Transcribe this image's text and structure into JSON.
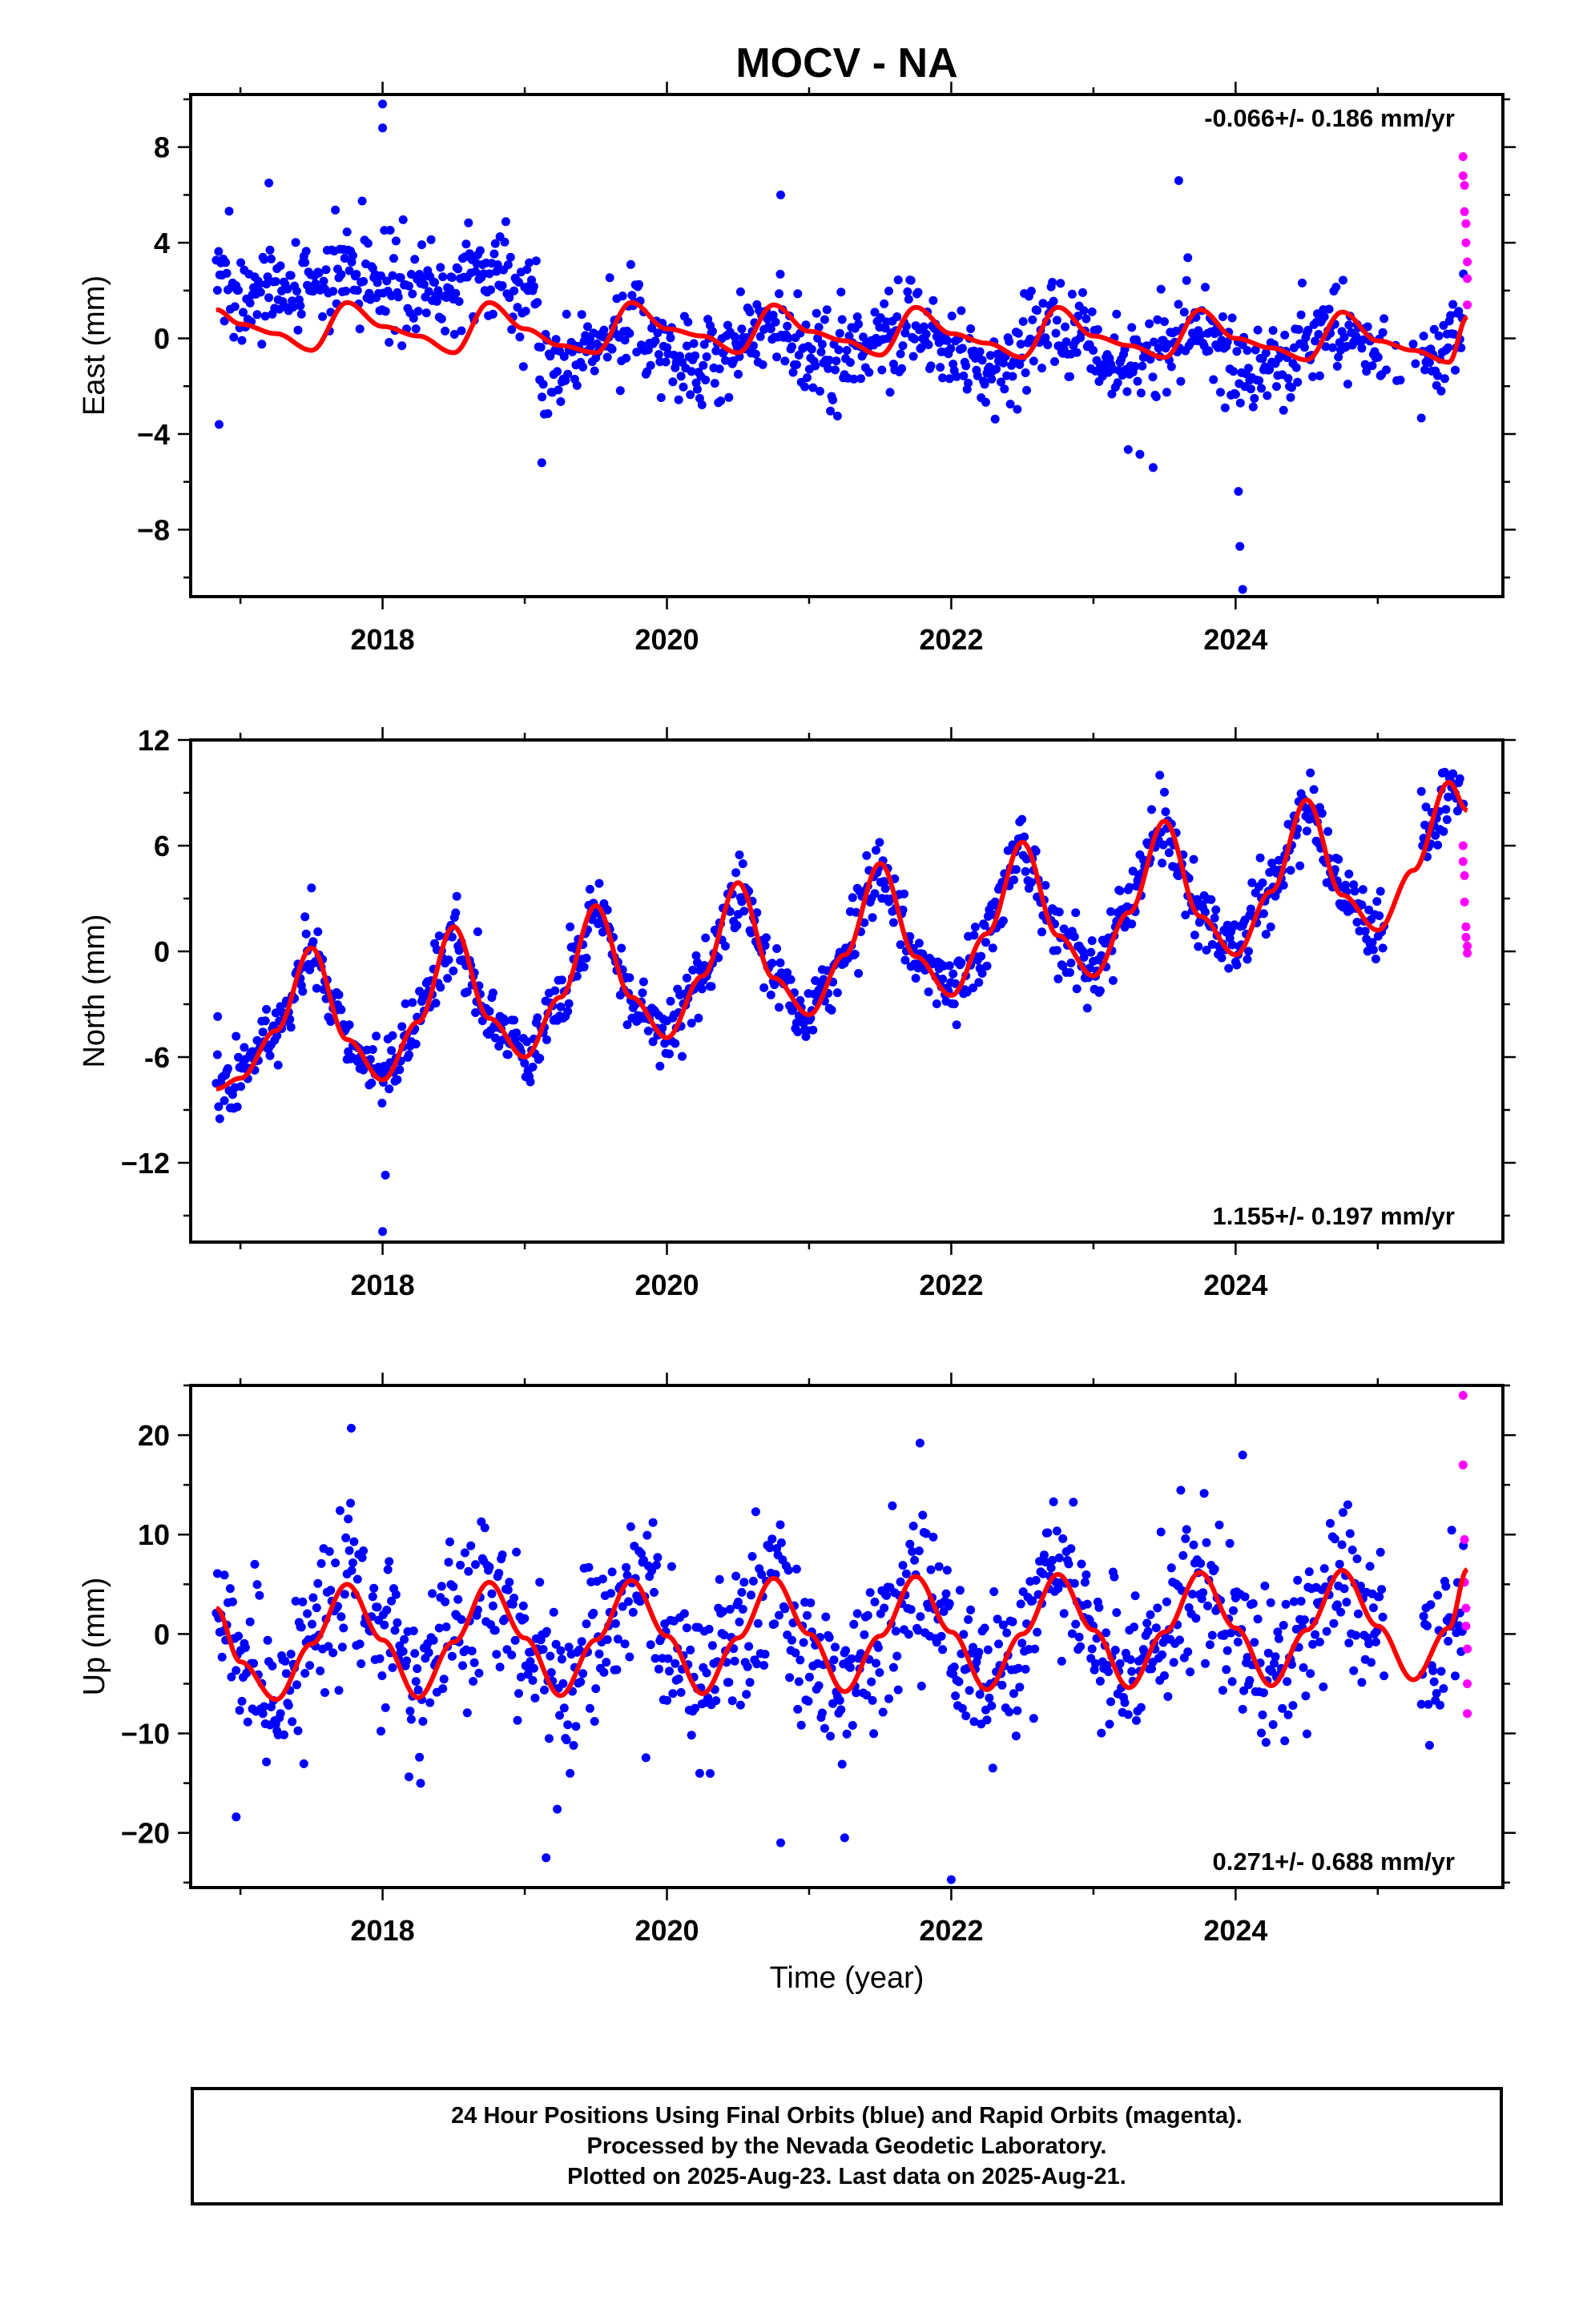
{
  "title": "MOCV - NA",
  "xlabel": "Time (year)",
  "colors": {
    "final": "#0000ff",
    "rapid": "#ff00ff",
    "model": "#ff0000",
    "axis": "#000000"
  },
  "caption": [
    "24 Hour Positions Using Final Orbits (blue) and Rapid Orbits (magenta).",
    "Processed by the Nevada Geodetic Laboratory.",
    "Plotted on 2025-Aug-23. Last data on 2025-Aug-21."
  ],
  "chart_data": [
    {
      "type": "scatter",
      "component": "east",
      "ylabel": "East (mm)",
      "rate_label": "-0.066+/- 0.186 mm/yr",
      "rate_label_position": "top-right",
      "xlim": [
        2016.65,
        2025.88
      ],
      "ylim": [
        -10.8,
        10.2
      ],
      "xticks": [
        2018,
        2020,
        2022,
        2024
      ],
      "xtick_labels": [
        "2018",
        "2020",
        "2022",
        "2024"
      ],
      "yticks": [
        8,
        4,
        0,
        -4,
        -8
      ],
      "ytick_labels": [
        "8",
        "4",
        "0",
        "−4",
        "−8"
      ],
      "data_span": [
        2016.83,
        2025.63
      ],
      "series": [
        {
          "name": "Final Orbits",
          "kind": "points",
          "color": "#0000ff",
          "segments": [
            {
              "start": 2016.83,
              "end": 2019.1,
              "offset": 2.4,
              "amplitude": 0.9,
              "phase": 0.6,
              "noise": 1.1
            },
            {
              "start": 2019.1,
              "end": 2025.55,
              "offset": -0.6,
              "amplitude": 1.3,
              "phase": 0.65,
              "noise": 1.0
            },
            {
              "start": 2025.55,
              "end": 2025.61,
              "offset": 1.0,
              "amplitude": 0.8,
              "phase": 0.65,
              "noise": 1.2
            }
          ],
          "outliers": [
            {
              "x": 2016.85,
              "y": -3.6
            },
            {
              "x": 2018.0,
              "y": 9.8
            },
            {
              "x": 2018.0,
              "y": 8.8
            },
            {
              "x": 2017.2,
              "y": 6.5
            },
            {
              "x": 2020.8,
              "y": 6.0
            },
            {
              "x": 2023.6,
              "y": 6.6
            },
            {
              "x": 2024.05,
              "y": -10.5
            },
            {
              "x": 2024.03,
              "y": -8.7
            },
            {
              "x": 2024.02,
              "y": -6.4
            },
            {
              "x": 2019.12,
              "y": -5.2
            },
            {
              "x": 2023.42,
              "y": -5.4
            }
          ]
        },
        {
          "name": "Rapid Orbits",
          "kind": "points",
          "color": "#ff00ff",
          "points": [
            [
              2025.6,
              7.6
            ],
            [
              2025.6,
              6.8
            ],
            [
              2025.61,
              6.4
            ],
            [
              2025.61,
              5.3
            ],
            [
              2025.62,
              4.8
            ],
            [
              2025.62,
              4.0
            ],
            [
              2025.63,
              3.2
            ],
            [
              2025.63,
              2.5
            ],
            [
              2025.63,
              1.4
            ]
          ]
        },
        {
          "name": "Model",
          "kind": "line",
          "color": "#ff0000",
          "x": [
            2016.83,
            2017.0,
            2017.25,
            2017.5,
            2017.75,
            2018.0,
            2018.25,
            2018.5,
            2018.75,
            2019.0,
            2019.25,
            2019.5,
            2019.75,
            2020.0,
            2020.25,
            2020.5,
            2020.75,
            2021.0,
            2021.25,
            2021.5,
            2021.75,
            2022.0,
            2022.25,
            2022.5,
            2022.75,
            2023.0,
            2023.25,
            2023.5,
            2023.75,
            2024.0,
            2024.25,
            2024.5,
            2024.75,
            2025.0,
            2025.25,
            2025.5,
            2025.63
          ],
          "y": [
            1.2,
            0.6,
            0.2,
            -0.5,
            1.5,
            0.5,
            0.1,
            -0.6,
            1.5,
            0.4,
            -0.3,
            -0.6,
            1.5,
            0.4,
            0.1,
            -0.6,
            1.4,
            0.3,
            -0.1,
            -0.7,
            1.3,
            0.2,
            -0.2,
            -0.8,
            1.3,
            0.1,
            -0.3,
            -0.8,
            1.2,
            0.0,
            -0.4,
            -0.9,
            1.1,
            -0.1,
            -0.5,
            -1.0,
            0.9
          ]
        }
      ]
    },
    {
      "type": "scatter",
      "component": "north",
      "ylabel": "North (mm)",
      "rate_label": "1.155+/- 0.197 mm/yr",
      "rate_label_position": "bottom-right",
      "xlim": [
        2016.65,
        2025.88
      ],
      "ylim": [
        -16.5,
        12.0
      ],
      "xticks": [
        2018,
        2020,
        2022,
        2024
      ],
      "xtick_labels": [
        "2018",
        "2020",
        "2022",
        "2024"
      ],
      "yticks": [
        12,
        6,
        0,
        -6,
        -12
      ],
      "ytick_labels": [
        "12",
        "6",
        "0",
        "-6",
        "−12"
      ],
      "data_span": [
        2016.83,
        2025.63
      ],
      "series": [
        {
          "name": "Final Orbits",
          "kind": "points",
          "color": "#0000ff",
          "trend": 1.155,
          "annual_amplitude": 4.6,
          "peak_phase": 0.5,
          "base": -3.5,
          "noise": 1.0,
          "gap": [
            2025.05,
            2025.3
          ],
          "outliers": [
            {
              "x": 2018.0,
              "y": -15.9
            },
            {
              "x": 2018.02,
              "y": -12.7
            },
            {
              "x": 2017.5,
              "y": 3.6
            },
            {
              "x": 2016.84,
              "y": -3.7
            }
          ]
        },
        {
          "name": "Rapid Orbits",
          "kind": "points",
          "color": "#ff00ff",
          "points": [
            [
              2025.6,
              6.0
            ],
            [
              2025.6,
              5.1
            ],
            [
              2025.61,
              4.3
            ],
            [
              2025.61,
              2.8
            ],
            [
              2025.62,
              1.4
            ],
            [
              2025.62,
              0.8
            ],
            [
              2025.63,
              0.3
            ],
            [
              2025.63,
              -0.1
            ]
          ]
        },
        {
          "name": "Model",
          "kind": "line",
          "color": "#ff0000",
          "x": [
            2016.83,
            2017.0,
            2017.25,
            2017.5,
            2017.75,
            2018.0,
            2018.25,
            2018.5,
            2018.75,
            2019.0,
            2019.25,
            2019.5,
            2019.75,
            2020.0,
            2020.25,
            2020.5,
            2020.75,
            2021.0,
            2021.25,
            2021.5,
            2021.75,
            2022.0,
            2022.25,
            2022.5,
            2022.75,
            2023.0,
            2023.25,
            2023.5,
            2023.75,
            2024.0,
            2024.25,
            2024.5,
            2024.75,
            2025.0,
            2025.25,
            2025.5,
            2025.63
          ],
          "y": [
            -7.8,
            -7.2,
            -4.5,
            0.2,
            -5.0,
            -7.3,
            -4.0,
            1.4,
            -3.8,
            -6.0,
            -2.6,
            2.6,
            -2.6,
            -4.9,
            -1.4,
            3.9,
            -1.5,
            -3.6,
            -0.2,
            5.0,
            -0.3,
            -2.5,
            1.0,
            6.2,
            0.9,
            -1.4,
            2.2,
            7.4,
            2.0,
            -0.2,
            3.4,
            8.6,
            3.2,
            1.2,
            4.6,
            9.6,
            8.0
          ]
        }
      ]
    },
    {
      "type": "scatter",
      "component": "up",
      "ylabel": "Up (mm)",
      "rate_label": "0.271+/- 0.688 mm/yr",
      "rate_label_position": "bottom-right",
      "xlim": [
        2016.65,
        2025.88
      ],
      "ylim": [
        -25.5,
        25.0
      ],
      "xticks": [
        2018,
        2020,
        2022,
        2024
      ],
      "xtick_labels": [
        "2018",
        "2020",
        "2022",
        "2024"
      ],
      "yticks": [
        20,
        10,
        0,
        -10,
        -20
      ],
      "ytick_labels": [
        "20",
        "10",
        "0",
        "−10",
        "−20"
      ],
      "data_span": [
        2016.83,
        2025.63
      ],
      "series": [
        {
          "name": "Final Orbits",
          "kind": "points",
          "color": "#0000ff",
          "trend": 0.271,
          "annual_amplitude": 5.8,
          "peak_phase": 0.7,
          "base": -0.8,
          "noise": 4.0,
          "gap": [
            2025.05,
            2025.3
          ],
          "outliers": [
            {
              "x": 2017.78,
              "y": 20.7
            },
            {
              "x": 2021.78,
              "y": 19.2
            },
            {
              "x": 2024.05,
              "y": 18.0
            },
            {
              "x": 2019.15,
              "y": -22.5
            },
            {
              "x": 2022.0,
              "y": -24.7
            },
            {
              "x": 2020.8,
              "y": -21.0
            },
            {
              "x": 2021.25,
              "y": -20.5
            },
            {
              "x": 2016.97,
              "y": -18.4
            }
          ]
        },
        {
          "name": "Rapid Orbits",
          "kind": "points",
          "color": "#ff00ff",
          "points": [
            [
              2025.6,
              24.0
            ],
            [
              2025.6,
              17.0
            ],
            [
              2025.61,
              9.5
            ],
            [
              2025.61,
              5.2
            ],
            [
              2025.62,
              2.6
            ],
            [
              2025.62,
              0.8
            ],
            [
              2025.63,
              -1.5
            ],
            [
              2025.63,
              -5.0
            ],
            [
              2025.63,
              -8.0
            ]
          ]
        },
        {
          "name": "Model",
          "kind": "line",
          "color": "#ff0000",
          "x": [
            2016.83,
            2017.0,
            2017.25,
            2017.5,
            2017.75,
            2018.0,
            2018.25,
            2018.5,
            2018.75,
            2019.0,
            2019.25,
            2019.5,
            2019.75,
            2020.0,
            2020.25,
            2020.5,
            2020.75,
            2021.0,
            2021.25,
            2021.5,
            2021.75,
            2022.0,
            2022.25,
            2022.5,
            2022.75,
            2023.0,
            2023.25,
            2023.5,
            2023.75,
            2024.0,
            2024.25,
            2024.5,
            2024.75,
            2025.0,
            2025.25,
            2025.5,
            2025.63
          ],
          "y": [
            2.6,
            -2.8,
            -6.6,
            -1.0,
            5.0,
            -0.6,
            -6.4,
            -0.8,
            5.2,
            -0.4,
            -6.2,
            -0.6,
            5.4,
            -0.2,
            -6.0,
            -0.4,
            5.6,
            0.0,
            -5.8,
            -0.2,
            5.8,
            0.2,
            -5.6,
            0.0,
            6.0,
            0.4,
            -5.4,
            0.2,
            6.2,
            0.6,
            -5.2,
            0.4,
            6.4,
            0.8,
            -4.6,
            0.6,
            6.5
          ]
        }
      ]
    }
  ]
}
